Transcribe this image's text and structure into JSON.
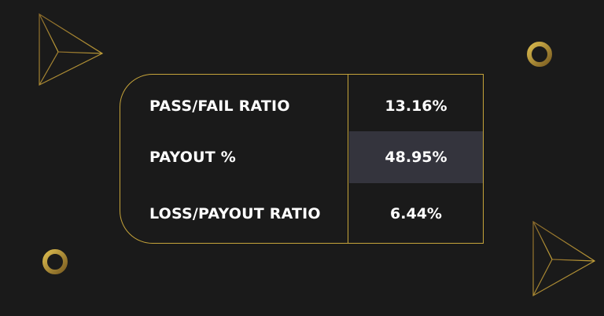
{
  "colors": {
    "background": "#1a1a1a",
    "accent_gold": "#c6a43a",
    "highlight_cell": "#34343d",
    "text": "#ffffff"
  },
  "decorations": [
    "triangle-outline-icon",
    "ring-icon",
    "ring-icon",
    "triangle-outline-icon"
  ],
  "stats": [
    {
      "label": "PASS/FAIL RATIO",
      "value": "13.16%"
    },
    {
      "label": "PAYOUT %",
      "value": "48.95%"
    },
    {
      "label": "LOSS/PAYOUT RATIO",
      "value": "6.44%"
    }
  ]
}
